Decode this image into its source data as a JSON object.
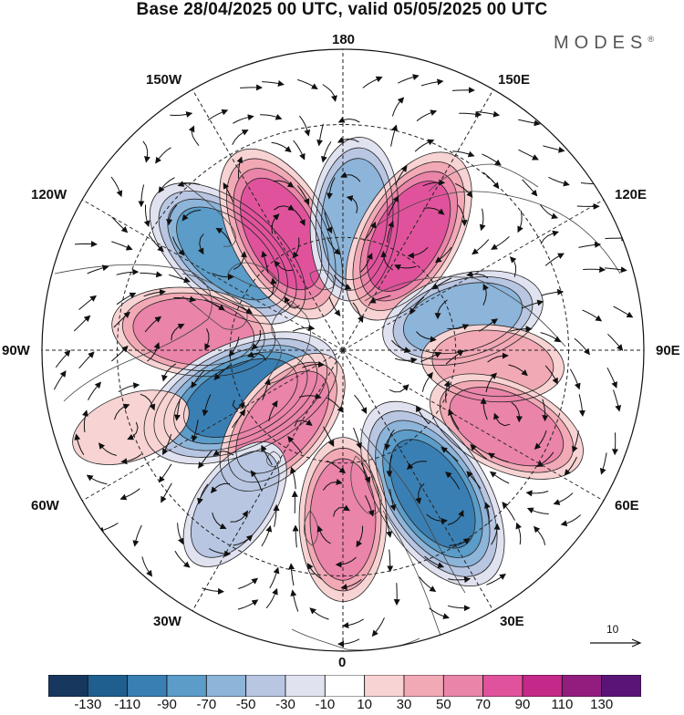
{
  "title": "Base 28/04/2025 00 UTC, valid 05/05/2025 00 UTC",
  "brand": "MODES",
  "brand_mark": "®",
  "longitude_labels": {
    "n180": "180",
    "w150": "150W",
    "e150": "150E",
    "w120": "120W",
    "e120": "120E",
    "w90": "90W",
    "e90": "90E",
    "w60": "60W",
    "e60": "60E",
    "w30": "30W",
    "e30": "30E",
    "s0": "0"
  },
  "reference_vector": {
    "label": "10"
  },
  "colorbar": {
    "colors": [
      "#17375e",
      "#1f5f8f",
      "#3a7fb3",
      "#5b9cc8",
      "#8db4d9",
      "#b8c6e2",
      "#e1e2f0",
      "#ffffff",
      "#f8d3d3",
      "#f2a9b6",
      "#ea84a9",
      "#e0539c",
      "#c42888",
      "#921d7f",
      "#5a1478"
    ],
    "ticks": [
      "-130",
      "-110",
      "-90",
      "-70",
      "-50",
      "-30",
      "-10",
      "10",
      "30",
      "50",
      "70",
      "90",
      "110",
      "130"
    ]
  },
  "anomaly_centers": [
    {
      "lon": -130,
      "lat": 50,
      "value": -90
    },
    {
      "lon": -152,
      "lat": 55,
      "value": 85
    },
    {
      "lon": 175,
      "lat": 55,
      "value": -75
    },
    {
      "lon": 150,
      "lat": 55,
      "value": 85
    },
    {
      "lon": 105,
      "lat": 57,
      "value": -65
    },
    {
      "lon": -97,
      "lat": 50,
      "value": 75
    },
    {
      "lon": -65,
      "lat": 60,
      "value": -110
    },
    {
      "lon": 85,
      "lat": 50,
      "value": 45
    },
    {
      "lon": 65,
      "lat": 42,
      "value": 60
    },
    {
      "lon": -40,
      "lat": 65,
      "value": 60
    },
    {
      "lon": 32,
      "lat": 45,
      "value": -100
    },
    {
      "lon": 0,
      "lat": 45,
      "value": 60
    },
    {
      "lon": -35,
      "lat": 40,
      "value": -55
    },
    {
      "lon": -70,
      "lat": 30,
      "value": 35
    }
  ]
}
